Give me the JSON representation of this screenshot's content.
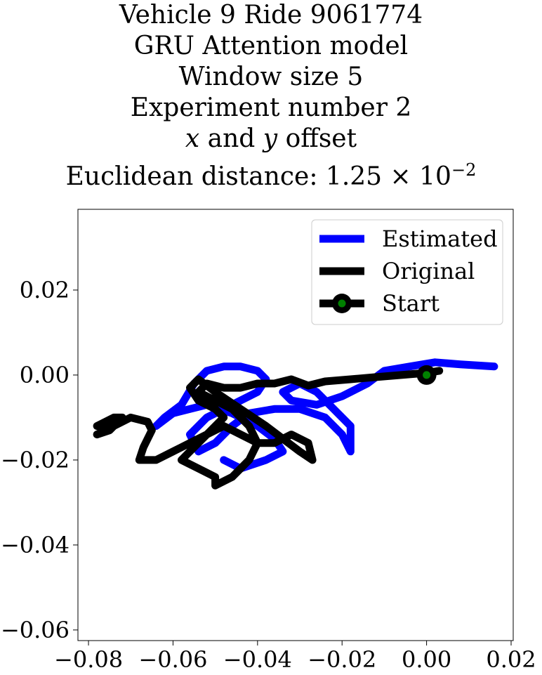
{
  "title": {
    "line1": "Vehicle 9 Ride 9061774",
    "line2": "GRU Attention model",
    "line3": "Window size 5",
    "line4": "Experiment number 2",
    "line5_x": "x",
    "line5_and": " and ",
    "line5_y": "y",
    "line5_rest": " offset",
    "line6_prefix": "Euclidean distance: 1.25 × 10",
    "line6_exp": "−2"
  },
  "colors": {
    "estimated": "#0000ff",
    "original": "#000000",
    "start_marker": "#008000"
  },
  "chart_data": {
    "type": "line",
    "xlim": [
      -0.0825,
      0.0205
    ],
    "ylim": [
      -0.0625,
      0.039
    ],
    "grid": false,
    "legend_position": "top-right",
    "x_ticks": [
      -0.08,
      -0.06,
      -0.04,
      -0.02,
      0.0,
      0.02
    ],
    "x_tick_labels": [
      "−0.08",
      "−0.06",
      "−0.04",
      "−0.02",
      "0.00",
      "0.02"
    ],
    "y_ticks": [
      0.02,
      0.0,
      -0.02,
      -0.04,
      -0.06
    ],
    "y_tick_labels": [
      "0.02",
      "0.00",
      "−0.02",
      "−0.04",
      "−0.06"
    ],
    "series": [
      {
        "name": "Estimated",
        "x": [
          0.016,
          0.008,
          0.002,
          -0.004,
          -0.01,
          -0.014,
          -0.02,
          -0.026,
          -0.032,
          -0.034,
          -0.03,
          -0.026,
          -0.022,
          -0.018,
          -0.018,
          -0.02,
          -0.024,
          -0.03,
          -0.036,
          -0.042,
          -0.046,
          -0.05,
          -0.054,
          -0.056,
          -0.052,
          -0.048,
          -0.044,
          -0.04,
          -0.038,
          -0.04,
          -0.044,
          -0.048,
          -0.052,
          -0.055,
          -0.058,
          -0.062,
          -0.064,
          -0.06,
          -0.056,
          -0.052,
          -0.046,
          -0.04,
          -0.036,
          -0.034,
          -0.038,
          -0.044,
          -0.048
        ],
        "y": [
          0.002,
          0.0025,
          0.003,
          0.002,
          0.001,
          -0.002,
          -0.005,
          -0.007,
          -0.006,
          -0.004,
          -0.002,
          -0.004,
          -0.008,
          -0.012,
          -0.018,
          -0.014,
          -0.01,
          -0.008,
          -0.008,
          -0.009,
          -0.012,
          -0.016,
          -0.018,
          -0.014,
          -0.01,
          -0.008,
          -0.006,
          -0.004,
          -0.001,
          0.001,
          0.002,
          0.002,
          0.001,
          -0.002,
          -0.007,
          -0.01,
          -0.012,
          -0.009,
          -0.008,
          -0.007,
          -0.009,
          -0.012,
          -0.015,
          -0.018,
          -0.02,
          -0.022,
          -0.02
        ]
      },
      {
        "name": "Original",
        "x": [
          0.003,
          0.0,
          -0.006,
          -0.012,
          -0.018,
          -0.024,
          -0.028,
          -0.032,
          -0.036,
          -0.04,
          -0.044,
          -0.048,
          -0.052,
          -0.054,
          -0.05,
          -0.046,
          -0.042,
          -0.04,
          -0.036,
          -0.032,
          -0.028,
          -0.027,
          -0.03,
          -0.034,
          -0.038,
          -0.044,
          -0.05,
          -0.054,
          -0.056,
          -0.054,
          -0.05,
          -0.048,
          -0.052,
          -0.056,
          -0.058,
          -0.054,
          -0.05,
          -0.05,
          -0.046,
          -0.042,
          -0.04,
          -0.044,
          -0.048,
          -0.052,
          -0.056,
          -0.06,
          -0.064,
          -0.068,
          -0.067,
          -0.065,
          -0.066,
          -0.07,
          -0.074,
          -0.078,
          -0.075,
          -0.072,
          -0.074,
          -0.078
        ],
        "y": [
          0.001,
          0.0005,
          0.0,
          -0.0005,
          -0.001,
          -0.0015,
          -0.0025,
          -0.001,
          -0.002,
          -0.002,
          -0.003,
          -0.003,
          -0.002,
          -0.004,
          -0.006,
          -0.008,
          -0.012,
          -0.016,
          -0.016,
          -0.014,
          -0.016,
          -0.02,
          -0.018,
          -0.015,
          -0.012,
          -0.008,
          -0.004,
          -0.001,
          -0.003,
          -0.006,
          -0.008,
          -0.01,
          -0.014,
          -0.018,
          -0.02,
          -0.022,
          -0.024,
          -0.026,
          -0.024,
          -0.02,
          -0.016,
          -0.014,
          -0.012,
          -0.014,
          -0.016,
          -0.018,
          -0.02,
          -0.02,
          -0.017,
          -0.013,
          -0.011,
          -0.01,
          -0.012,
          -0.014,
          -0.013,
          -0.01,
          -0.01,
          -0.012
        ]
      }
    ],
    "start_point": {
      "label": "Start",
      "x": 0.0,
      "y": 0.0
    },
    "legend": [
      "Estimated",
      "Original",
      "Start"
    ]
  }
}
